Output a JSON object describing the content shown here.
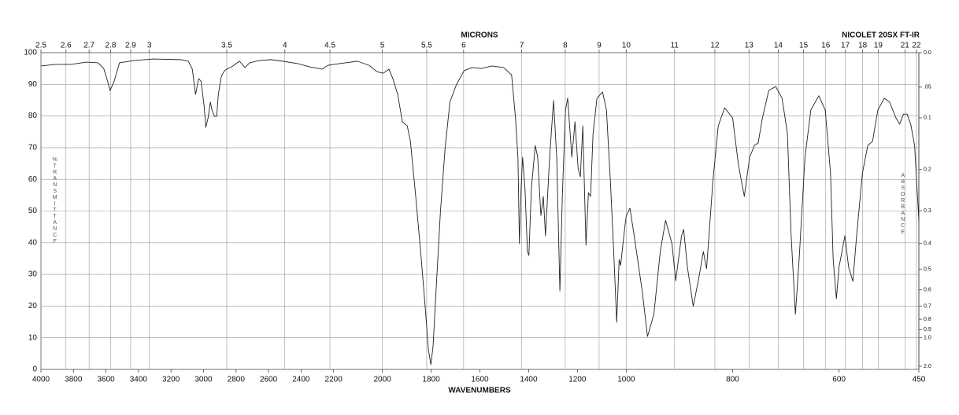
{
  "chart_data": {
    "type": "line",
    "title": "MICRONS",
    "subtitle": "NICOLET 20SX FT-IR",
    "xlabel": "WAVENUMBERS",
    "ylabel": "%TRANSMITTANCE",
    "y2label": "ABSORBANCE",
    "color": "#222222",
    "grid": true,
    "xlim": [
      4000,
      450
    ],
    "xscale": "piecewise",
    "xbreaks": [
      2200,
      1000
    ],
    "xticks": [
      4000,
      3800,
      3600,
      3400,
      3200,
      3000,
      2800,
      2600,
      2400,
      2200,
      2000,
      1800,
      1600,
      1400,
      1200,
      1000,
      800,
      600,
      450
    ],
    "x2ticks": [
      2.5,
      2.6,
      2.7,
      2.8,
      2.9,
      3,
      3.5,
      4,
      4.5,
      5,
      5.5,
      6,
      7,
      8,
      9,
      10,
      11,
      12,
      13,
      14,
      15,
      16,
      17,
      18,
      19,
      21,
      22
    ],
    "ylim": [
      0,
      100
    ],
    "yticks": [
      0,
      10,
      20,
      30,
      40,
      50,
      60,
      70,
      80,
      90,
      100
    ],
    "y2ticks": [
      {
        "value": 0,
        "label": "0.0"
      },
      {
        "value": 0.05,
        "label": ".05"
      },
      0.1,
      0.2,
      0.3,
      0.4,
      0.5,
      0.6,
      0.7,
      0.8,
      0.9,
      {
        "value": 1,
        "label": "1.0"
      },
      {
        "value": 2,
        "label": "2.0"
      }
    ],
    "x": [
      4000,
      3913,
      3817,
      3720,
      3648,
      3614,
      3590,
      3575,
      3551,
      3517,
      3430,
      3310,
      3141,
      3093,
      3069,
      3049,
      3030,
      3015,
      2996,
      2986,
      2972,
      2958,
      2948,
      2933,
      2919,
      2909,
      2890,
      2871,
      2851,
      2827,
      2779,
      2745,
      2716,
      2658,
      2586,
      2514,
      2417,
      2345,
      2272,
      2234,
      2200,
      2151,
      2103,
      2054,
      2022,
      1996,
      1973,
      1957,
      1937,
      1918,
      1898,
      1885,
      1866,
      1843,
      1827,
      1811,
      1801,
      1792,
      1778,
      1762,
      1743,
      1723,
      1697,
      1665,
      1632,
      1593,
      1551,
      1503,
      1470,
      1454,
      1444,
      1438,
      1431,
      1425,
      1415,
      1405,
      1399,
      1389,
      1373,
      1363,
      1350,
      1340,
      1331,
      1314,
      1298,
      1285,
      1272,
      1262,
      1249,
      1240,
      1223,
      1210,
      1197,
      1188,
      1178,
      1165,
      1155,
      1146,
      1136,
      1120,
      1097,
      1081,
      1065,
      1052,
      1039,
      1029,
      1023,
      1006,
      1000,
      993,
      985,
      970,
      960,
      948,
      936,
      926,
      914,
      907,
      896,
      892,
      885,
      874,
      864,
      855,
      849,
      837,
      827,
      815,
      800,
      789,
      778,
      768,
      759,
      752,
      744,
      732,
      719,
      707,
      697,
      690,
      682,
      675,
      664,
      653,
      638,
      626,
      616,
      611,
      605,
      600,
      589,
      582,
      574,
      567,
      556,
      546,
      537,
      527,
      515,
      505,
      493,
      486,
      479,
      472,
      465,
      458,
      450
    ],
    "values": [
      95.8,
      96.3,
      96.3,
      97,
      96.8,
      95,
      91,
      88,
      90.8,
      96.8,
      97.5,
      98,
      97.8,
      97.3,
      94.8,
      86.8,
      91.8,
      91,
      83,
      76.4,
      79.4,
      84.4,
      81.9,
      79.9,
      79.9,
      86.8,
      92.6,
      94.3,
      95,
      95.5,
      97.3,
      95.3,
      96.8,
      97.5,
      97.8,
      97.3,
      96.5,
      95.5,
      94.8,
      96,
      96.3,
      96.8,
      97.3,
      96,
      94,
      93.5,
      94.8,
      91.8,
      86.8,
      78.2,
      76.9,
      72,
      57,
      37.2,
      22.3,
      6.2,
      1.5,
      7.4,
      27.3,
      49.6,
      69.5,
      84.4,
      89.8,
      94.3,
      95.3,
      95,
      95.8,
      95.3,
      93,
      79.4,
      67,
      39.7,
      57,
      67,
      57,
      37.2,
      36,
      57,
      70.7,
      67,
      48.6,
      54.6,
      42.2,
      67,
      84.9,
      67,
      24.8,
      54.6,
      81.9,
      85.6,
      67,
      78.2,
      63.3,
      60.8,
      76.9,
      39.2,
      55.8,
      54.6,
      74.4,
      85.6,
      87.6,
      81.9,
      59.6,
      38.5,
      14.9,
      34.7,
      32.8,
      44.7,
      48.4,
      50.9,
      42.2,
      24.8,
      10.4,
      17.4,
      37.2,
      47.1,
      39.7,
      28,
      42.2,
      44.2,
      32.3,
      19.9,
      28.5,
      37.2,
      31.8,
      59.6,
      76.9,
      82.6,
      79.4,
      64.5,
      54.6,
      67,
      70.7,
      71.5,
      79.4,
      88.1,
      89.3,
      85.6,
      74.4,
      42.2,
      17.4,
      34.7,
      67,
      81.9,
      86.4,
      81.9,
      62,
      34.7,
      22.3,
      32.3,
      42.2,
      32.3,
      27.8,
      42.2,
      62,
      70.7,
      72,
      81.9,
      85.6,
      84.4,
      79.4,
      77.4,
      80.6,
      80.6,
      77.2,
      70.7,
      47.1
    ]
  }
}
